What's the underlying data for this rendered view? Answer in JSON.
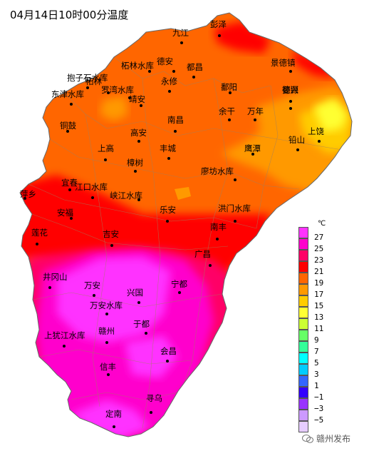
{
  "title": "04月14日10时00分温度",
  "legend": {
    "unit": "℃",
    "ticks": [
      "27",
      "25",
      "23",
      "21",
      "19",
      "17",
      "15",
      "13",
      "11",
      "9",
      "7",
      "5",
      "3",
      "1",
      "−1",
      "−3",
      "−5"
    ],
    "colors": [
      "#ff33ff",
      "#ff00cc",
      "#ff0066",
      "#ff0000",
      "#ff6600",
      "#ff9900",
      "#ffcc00",
      "#ffff33",
      "#ccff33",
      "#66ff66",
      "#33ff99",
      "#00ffff",
      "#00ccff",
      "#3366ff",
      "#3300ff",
      "#9933ff",
      "#cc99ff",
      "#e6ccff"
    ]
  },
  "cities": [
    {
      "name": "彭泽"
    },
    {
      "name": "九江"
    },
    {
      "name": "景德镇"
    },
    {
      "name": "柘林水库"
    },
    {
      "name": "德安"
    },
    {
      "name": "都昌"
    },
    {
      "name": "抱子石水库"
    },
    {
      "name": "婺源"
    },
    {
      "name": "柘林"
    },
    {
      "name": "罗湾水库"
    },
    {
      "name": "永修"
    },
    {
      "name": "鄱阳"
    },
    {
      "name": "东津水库"
    },
    {
      "name": "德兴"
    },
    {
      "name": "靖安"
    },
    {
      "name": "余干"
    },
    {
      "name": "万年"
    },
    {
      "name": "铜鼓"
    },
    {
      "name": "南昌"
    },
    {
      "name": "上饶"
    },
    {
      "name": "高安"
    },
    {
      "name": "铅山"
    },
    {
      "name": "上高"
    },
    {
      "name": "丰城"
    },
    {
      "name": "鹰潭"
    },
    {
      "name": "樟树"
    },
    {
      "name": "廖坊水库"
    },
    {
      "name": "萍乡"
    },
    {
      "name": "宜春"
    },
    {
      "name": "江口水库"
    },
    {
      "name": "峡江水库"
    },
    {
      "name": "安福"
    },
    {
      "name": "乐安"
    },
    {
      "name": "洪门水库"
    },
    {
      "name": "莲花"
    },
    {
      "name": "吉安"
    },
    {
      "name": "南丰"
    },
    {
      "name": "广昌"
    },
    {
      "name": "井冈山"
    },
    {
      "name": "万安"
    },
    {
      "name": "宁都"
    },
    {
      "name": "兴国"
    },
    {
      "name": "万安水库"
    },
    {
      "name": "于都"
    },
    {
      "name": "上犹江水库"
    },
    {
      "name": "赣州"
    },
    {
      "name": "会昌"
    },
    {
      "name": "信丰"
    },
    {
      "name": "寻乌"
    },
    {
      "name": "定南"
    }
  ],
  "watermark": "赣州发布"
}
